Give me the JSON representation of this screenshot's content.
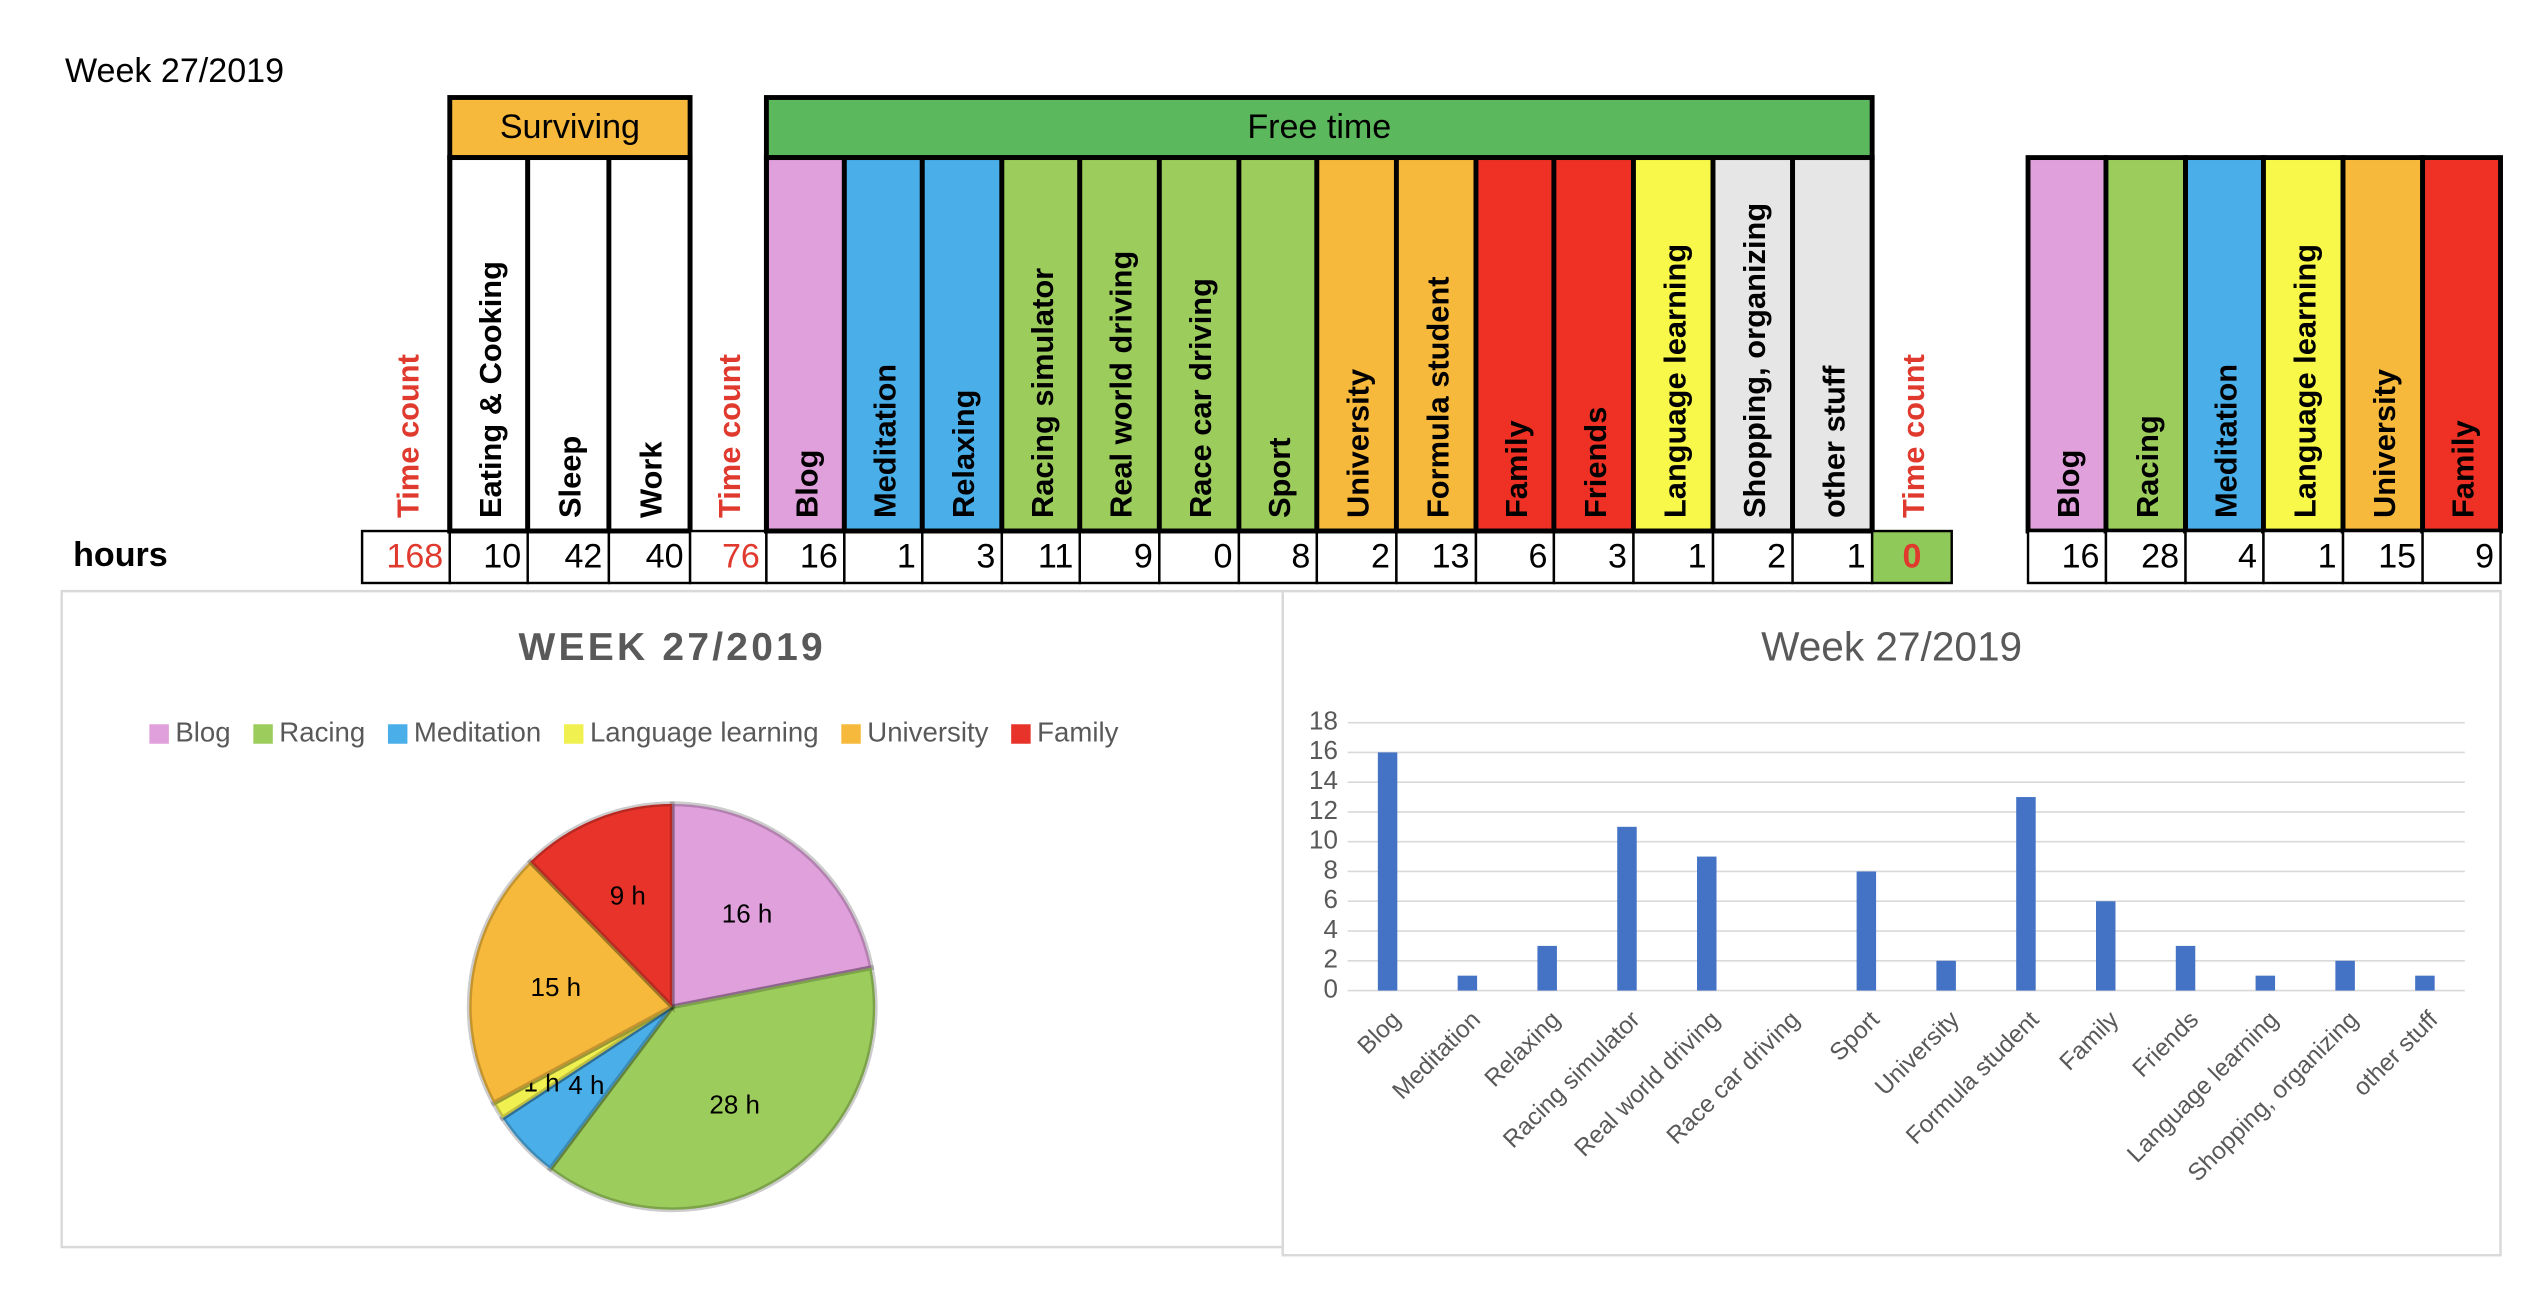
{
  "sheet_title": "Week 27/2019",
  "table": {
    "row_label": "hours",
    "sections": [
      {
        "columns": [
          {
            "header": "Time count",
            "value": 168,
            "text_color": "#e03a2f"
          }
        ]
      },
      {
        "label": "Surviving",
        "color": "#f6b93b",
        "columns": [
          {
            "header": "Eating & Cooking",
            "value": 10,
            "color": "#ffffff"
          },
          {
            "header": "Sleep",
            "value": 42,
            "color": "#ffffff"
          },
          {
            "header": "Work",
            "value": 40,
            "color": "#ffffff"
          }
        ]
      },
      {
        "columns": [
          {
            "header": "Time count",
            "value": 76,
            "text_color": "#e03a2f"
          }
        ]
      },
      {
        "label": "Free time",
        "color": "#5cb85c",
        "columns": [
          {
            "header": "Blog",
            "value": 16,
            "color": "#e0a0dc"
          },
          {
            "header": "Meditation",
            "value": 1,
            "color": "#4aaee8"
          },
          {
            "header": "Relaxing",
            "value": 3,
            "color": "#4aaee8"
          },
          {
            "header": "Racing simulator",
            "value": 11,
            "color": "#9ccc5c"
          },
          {
            "header": "Real world driving",
            "value": 9,
            "color": "#9ccc5c"
          },
          {
            "header": "Race car driving",
            "value": 0,
            "color": "#9ccc5c"
          },
          {
            "header": "Sport",
            "value": 8,
            "color": "#9ccc5c"
          },
          {
            "header": "University",
            "value": 2,
            "color": "#f6b93b"
          },
          {
            "header": "Formula student",
            "value": 13,
            "color": "#f6b93b"
          },
          {
            "header": "Family",
            "value": 6,
            "color": "#ee3124"
          },
          {
            "header": "Friends",
            "value": 3,
            "color": "#ee3124"
          },
          {
            "header": "Language learning",
            "value": 1,
            "color": "#f8f84a"
          },
          {
            "header": "Shopping, organizing",
            "value": 2,
            "color": "#e6e6e6"
          },
          {
            "header": "other stuff",
            "value": 1,
            "color": "#e6e6e6"
          }
        ]
      },
      {
        "columns": [
          {
            "header": "Time count",
            "value": 0,
            "text_color": "#e03a2f",
            "value_fill": "#8fc95a"
          }
        ]
      }
    ]
  },
  "summary": {
    "columns": [
      {
        "header": "Blog",
        "value": 16,
        "color": "#e0a0dc"
      },
      {
        "header": "Racing",
        "value": 28,
        "color": "#9ccc5c"
      },
      {
        "header": "Meditation",
        "value": 4,
        "color": "#4aaee8"
      },
      {
        "header": "Language learning",
        "value": 1,
        "color": "#f8f84a"
      },
      {
        "header": "University",
        "value": 15,
        "color": "#f6b93b"
      },
      {
        "header": "Family",
        "value": 9,
        "color": "#ee3124"
      }
    ]
  },
  "chart_data": [
    {
      "type": "pie",
      "title": "WEEK 27/2019",
      "categories": [
        "Blog",
        "Racing",
        "Meditation",
        "Language learning",
        "University",
        "Family"
      ],
      "values": [
        16,
        28,
        4,
        1,
        15,
        9
      ],
      "value_labels": [
        "16 h",
        "28 h",
        "4 h",
        "1 h",
        "15 h",
        "9 h"
      ],
      "colors": [
        "#e0a0dc",
        "#9ccc5c",
        "#4aaee8",
        "#f0f050",
        "#f6b93b",
        "#e8332a"
      ],
      "legend": "top"
    },
    {
      "type": "bar",
      "title": "Week 27/2019",
      "categories": [
        "Blog",
        "Meditation",
        "Relaxing",
        "Racing simulator",
        "Real world driving",
        "Race car driving",
        "Sport",
        "University",
        "Formula student",
        "Family",
        "Friends",
        "Language learning",
        "Shopping, organizing",
        "other stuff"
      ],
      "values": [
        16,
        1,
        3,
        11,
        9,
        0,
        8,
        2,
        13,
        6,
        3,
        1,
        2,
        1
      ],
      "color": "#4472c4",
      "ylim": [
        0,
        18
      ],
      "yticks": [
        0,
        2,
        4,
        6,
        8,
        10,
        12,
        14,
        16,
        18
      ],
      "grid": true
    }
  ]
}
